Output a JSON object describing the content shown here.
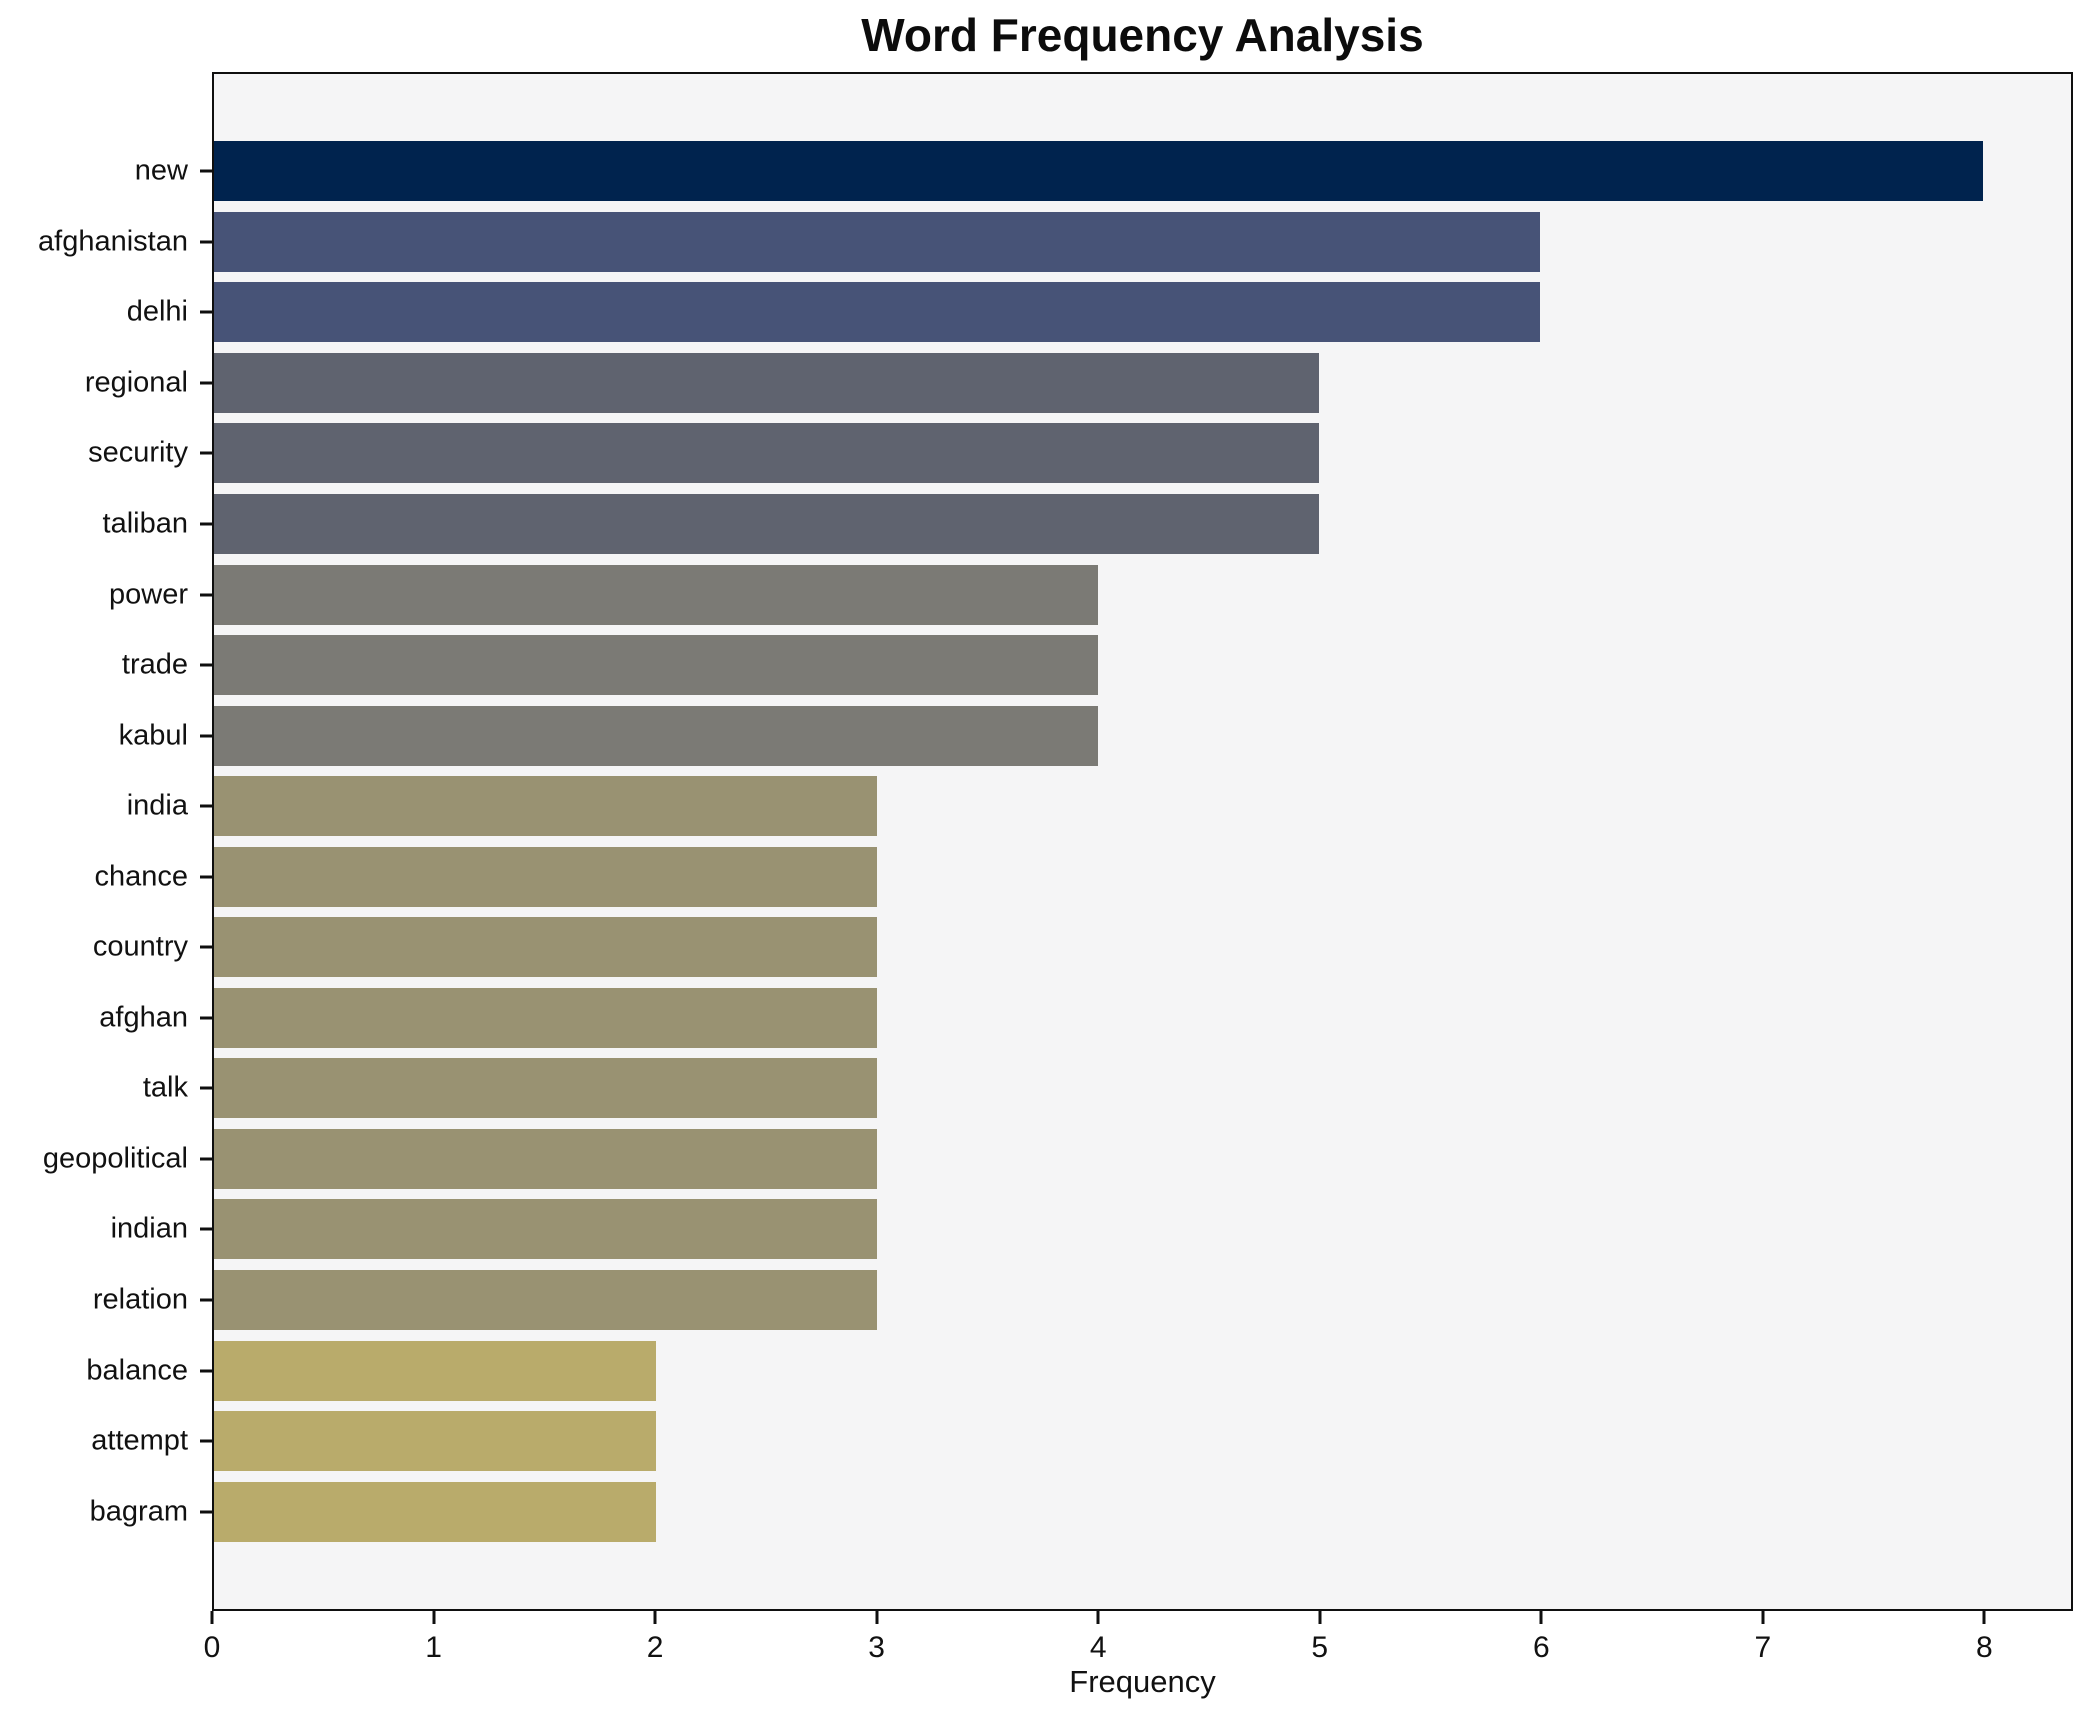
{
  "title": "Word Frequency Analysis",
  "chart_data": {
    "type": "bar",
    "orientation": "horizontal",
    "title": "Word Frequency Analysis",
    "xlabel": "Frequency",
    "ylabel": "",
    "xlim": [
      0,
      8.4
    ],
    "x_ticks": [
      0,
      1,
      2,
      3,
      4,
      5,
      6,
      7,
      8
    ],
    "grid": false,
    "legend_position": "none",
    "categories": [
      "new",
      "afghanistan",
      "delhi",
      "regional",
      "security",
      "taliban",
      "power",
      "trade",
      "kabul",
      "india",
      "chance",
      "country",
      "afghan",
      "talk",
      "geopolitical",
      "indian",
      "relation",
      "balance",
      "attempt",
      "bagram"
    ],
    "values": [
      8,
      6,
      6,
      5,
      5,
      5,
      4,
      4,
      4,
      3,
      3,
      3,
      3,
      3,
      3,
      3,
      3,
      2,
      2,
      2
    ],
    "bar_colors": [
      "#00234e",
      "#475377",
      "#475377",
      "#5f636f",
      "#5f636f",
      "#5f636f",
      "#7b7a75",
      "#7b7a75",
      "#7b7a75",
      "#999272",
      "#999272",
      "#999272",
      "#999272",
      "#999272",
      "#999272",
      "#999272",
      "#999272",
      "#b9ab6b",
      "#b9ab6b",
      "#b9ab6b"
    ]
  },
  "colors": {
    "figure_background": "#ffffff",
    "plot_background": "#f5f5f6",
    "axis": "#0f0f0f",
    "text": "#111111"
  }
}
